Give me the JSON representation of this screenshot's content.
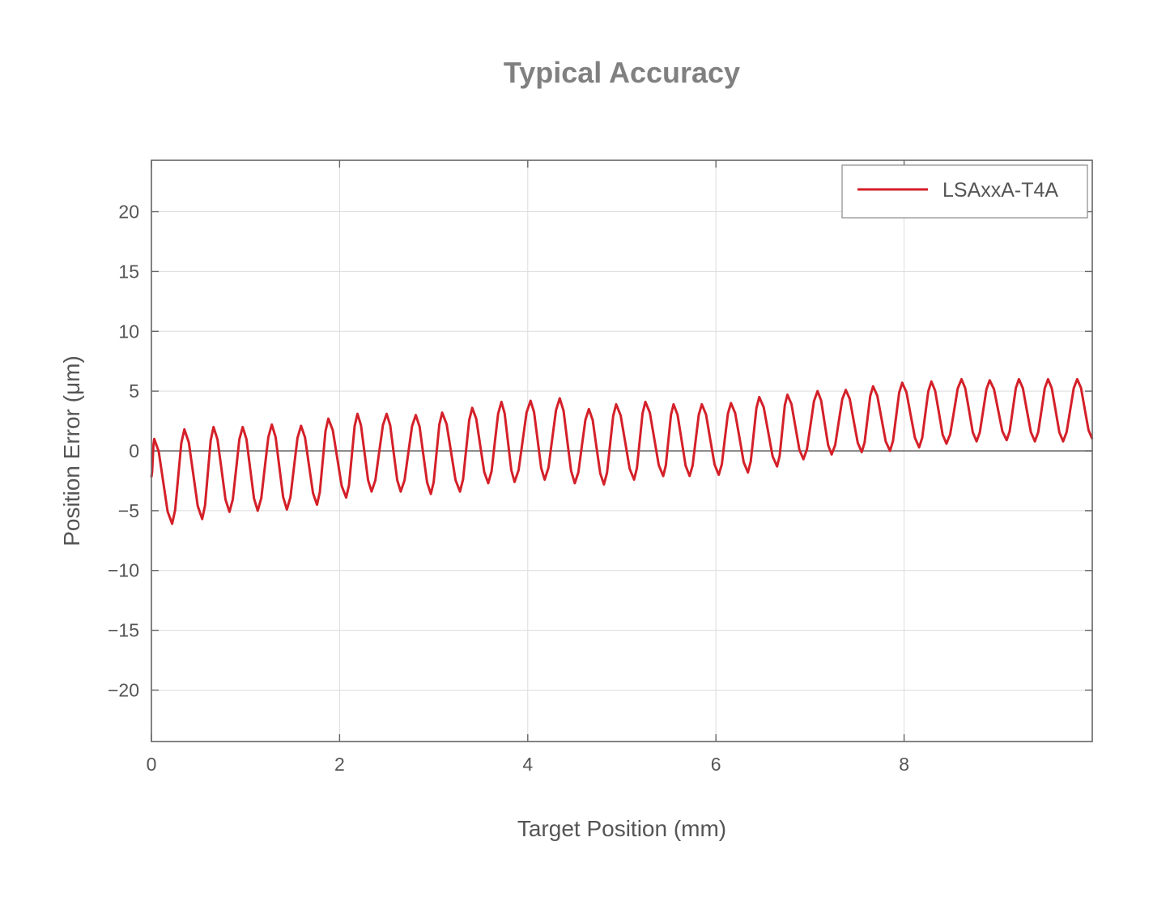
{
  "chart_data": {
    "type": "line",
    "title": "Typical Accuracy",
    "xlabel": "Target Position (mm)",
    "ylabel": "Position Error (μm)",
    "xlim": [
      0,
      10
    ],
    "ylim": [
      -24.3,
      24.3
    ],
    "xticks": [
      0,
      2,
      4,
      6,
      8
    ],
    "xtick_labels": [
      "0",
      "2",
      "4",
      "6",
      "8"
    ],
    "yticks": [
      20,
      15,
      10,
      5,
      0,
      -5,
      -10,
      -15,
      -20
    ],
    "ytick_labels": [
      "20",
      "15",
      "10",
      "5",
      "0",
      "−5",
      "−10",
      "−15",
      "−20"
    ],
    "grid": true,
    "zero_line": true,
    "legend_position": "top-right",
    "series": [
      {
        "name": "LSAxxA-T4A",
        "color": "#d42029",
        "note": "extrema (peaks/troughs) of the oscillating error curve",
        "x": [
          0,
          0.03,
          0.22,
          0.35,
          0.54,
          0.66,
          0.83,
          0.97,
          1.13,
          1.28,
          1.44,
          1.59,
          1.76,
          1.88,
          2.07,
          2.19,
          2.34,
          2.5,
          2.65,
          2.81,
          2.97,
          3.09,
          3.28,
          3.41,
          3.58,
          3.72,
          3.86,
          4.03,
          4.18,
          4.34,
          4.5,
          4.65,
          4.81,
          4.94,
          5.13,
          5.25,
          5.44,
          5.55,
          5.72,
          5.85,
          6.03,
          6.16,
          6.34,
          6.46,
          6.65,
          6.76,
          6.93,
          7.08,
          7.23,
          7.38,
          7.55,
          7.67,
          7.85,
          7.98,
          8.16,
          8.29,
          8.45,
          8.61,
          8.77,
          8.91,
          9.09,
          9.22,
          9.39,
          9.53,
          9.69,
          9.84,
          10.0
        ],
        "y": [
          -2.2,
          1.0,
          -6.1,
          1.8,
          -5.7,
          2.0,
          -5.1,
          2.0,
          -5.0,
          2.2,
          -4.9,
          2.1,
          -4.5,
          2.7,
          -3.9,
          3.1,
          -3.4,
          3.1,
          -3.4,
          3.0,
          -3.6,
          3.2,
          -3.4,
          3.6,
          -2.7,
          4.1,
          -2.6,
          4.2,
          -2.4,
          4.4,
          -2.7,
          3.5,
          -2.8,
          3.9,
          -2.4,
          4.1,
          -2.1,
          3.9,
          -2.1,
          3.9,
          -2.0,
          4.0,
          -1.8,
          4.5,
          -1.3,
          4.7,
          -0.7,
          5.0,
          -0.3,
          5.1,
          -0.1,
          5.4,
          0.0,
          5.7,
          0.3,
          5.8,
          0.6,
          6.0,
          0.8,
          5.9,
          0.9,
          6.0,
          0.8,
          6.0,
          0.8,
          6.0,
          1.0
        ]
      }
    ]
  }
}
